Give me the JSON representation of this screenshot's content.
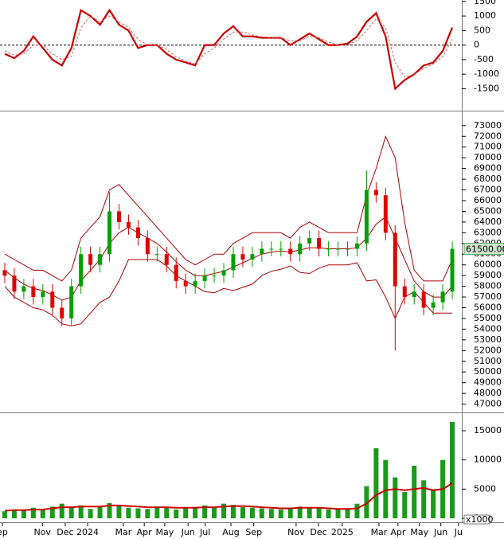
{
  "chart_data": [
    {
      "type": "line",
      "x": [
        1,
        3,
        5,
        7,
        9,
        11,
        13,
        15,
        17,
        19,
        21,
        23,
        25,
        27,
        29,
        31,
        33,
        35,
        37,
        39,
        41,
        43,
        45,
        47,
        49,
        51,
        53,
        55,
        57,
        59,
        61,
        63,
        65,
        67,
        69,
        71,
        73,
        75,
        77,
        79,
        81,
        83,
        85,
        87,
        89,
        91,
        93,
        95
      ],
      "xlim": [
        0,
        97
      ],
      "ylim": [
        -2200,
        1550
      ],
      "yticks": [
        1500,
        1000,
        500,
        0,
        -500,
        -1000,
        -1500
      ],
      "hline": 0,
      "series": [
        {
          "color": "#cc0000",
          "style": "solid",
          "values": [
            -300,
            -450,
            -200,
            300,
            -100,
            -500,
            -700,
            -100,
            1200,
            1000,
            700,
            1200,
            700,
            500,
            -100,
            0,
            0,
            -300,
            -500,
            -600,
            -700,
            0,
            0,
            400,
            650,
            300,
            300,
            250,
            250,
            250,
            0,
            200,
            400,
            200,
            0,
            0,
            50,
            300,
            800,
            1100,
            300,
            -1500,
            -1200,
            -1000,
            -700,
            -600,
            -200,
            600
          ]
        },
        {
          "color": "#cc6666",
          "style": "dashed",
          "values": [
            -200,
            -350,
            -300,
            0,
            0,
            -300,
            -500,
            -400,
            600,
            1000,
            800,
            1000,
            800,
            600,
            200,
            0,
            0,
            -150,
            -400,
            -550,
            -650,
            -300,
            -100,
            200,
            450,
            450,
            350,
            280,
            260,
            250,
            150,
            150,
            300,
            250,
            100,
            0,
            0,
            150,
            500,
            900,
            600,
            -600,
            -1100,
            -1000,
            -800,
            -650,
            -400,
            200
          ]
        }
      ]
    },
    {
      "type": "candlestick",
      "x": [
        1,
        3,
        5,
        7,
        9,
        11,
        13,
        15,
        17,
        19,
        21,
        23,
        25,
        27,
        29,
        31,
        33,
        35,
        37,
        39,
        41,
        43,
        45,
        47,
        49,
        51,
        53,
        55,
        57,
        59,
        61,
        63,
        65,
        67,
        69,
        71,
        73,
        75,
        77,
        79,
        81,
        83,
        85,
        87,
        89,
        91,
        93,
        95
      ],
      "xlim": [
        0,
        97
      ],
      "ylim": [
        46300,
        74250
      ],
      "yticks": [
        73000,
        72000,
        71000,
        70000,
        69000,
        68000,
        67000,
        66000,
        65000,
        64000,
        63000,
        62000,
        61000,
        60000,
        59000,
        58000,
        57000,
        56000,
        55000,
        54000,
        53000,
        52000,
        51000,
        50000,
        49000,
        48000,
        47000
      ],
      "up_color": "#00a000",
      "down_color": "#e00000",
      "open": [
        59500,
        59000,
        57500,
        58000,
        57000,
        57500,
        56000,
        55000,
        58000,
        61000,
        60000,
        61000,
        65000,
        64000,
        63500,
        62500,
        61000,
        61000,
        60000,
        58500,
        58000,
        58500,
        59000,
        59000,
        59500,
        61000,
        60500,
        61000,
        61500,
        61500,
        61500,
        61000,
        62000,
        62500,
        61500,
        61500,
        61500,
        61500,
        62000,
        67000,
        66500,
        63000,
        58000,
        57000,
        57500,
        56000,
        56500,
        57500
      ],
      "high": [
        60200,
        59700,
        58700,
        58700,
        58200,
        58200,
        56700,
        58700,
        61700,
        61700,
        61700,
        66800,
        65700,
        64700,
        64200,
        63200,
        61700,
        61700,
        60700,
        59200,
        59200,
        59700,
        59700,
        60200,
        61700,
        61700,
        61700,
        62200,
        62200,
        62200,
        62200,
        62700,
        63200,
        63200,
        62200,
        62200,
        62200,
        62700,
        68800,
        67700,
        67200,
        63700,
        58700,
        58200,
        58200,
        57200,
        58200,
        62200
      ],
      "low": [
        58300,
        56800,
        56800,
        56300,
        56300,
        55300,
        54300,
        54300,
        57300,
        59300,
        59300,
        60300,
        63300,
        62800,
        61800,
        60300,
        60300,
        59300,
        57800,
        57300,
        57300,
        57800,
        58300,
        58300,
        58800,
        59800,
        59800,
        60300,
        60800,
        60800,
        60300,
        60300,
        61300,
        60800,
        60800,
        60800,
        60800,
        60800,
        61300,
        65800,
        62300,
        52000,
        56300,
        56300,
        55300,
        55300,
        55800,
        56800
      ],
      "close": [
        59000,
        57500,
        58000,
        57000,
        57500,
        56000,
        55000,
        58000,
        61000,
        60000,
        61000,
        65000,
        64000,
        63500,
        62500,
        61000,
        61000,
        60000,
        58500,
        58000,
        58500,
        59000,
        59000,
        59500,
        61000,
        60500,
        61000,
        61500,
        61500,
        61500,
        61000,
        62000,
        62500,
        61500,
        61500,
        61500,
        61500,
        62000,
        67000,
        66500,
        63000,
        58000,
        57000,
        57500,
        56000,
        56500,
        57500,
        61500
      ],
      "close_label": "61500.00",
      "bands": [
        {
          "color": "#aa0000",
          "values": [
            61000,
            60500,
            60000,
            59500,
            59500,
            59000,
            58500,
            59500,
            62500,
            63500,
            64500,
            67000,
            67500,
            66500,
            65500,
            64500,
            63500,
            62500,
            61500,
            60500,
            60000,
            60500,
            61000,
            61000,
            62000,
            62500,
            63000,
            63000,
            63000,
            63000,
            62500,
            63500,
            64000,
            63500,
            63000,
            63000,
            63000,
            63000,
            66500,
            69000,
            72000,
            70000,
            64000,
            59500,
            58500,
            58500,
            58500,
            60500
          ]
        },
        {
          "color": "#aa0000",
          "values": [
            59500,
            58800,
            58200,
            57800,
            57600,
            57200,
            56700,
            57000,
            58500,
            59500,
            60500,
            62000,
            63000,
            63500,
            63000,
            62500,
            62000,
            61200,
            60300,
            59500,
            59000,
            59000,
            59200,
            59400,
            59800,
            60200,
            60600,
            61000,
            61200,
            61300,
            61200,
            61400,
            61600,
            61600,
            61500,
            61500,
            61500,
            61600,
            62500,
            63800,
            64500,
            62500,
            60500,
            58500,
            57500,
            57000,
            57000,
            58000
          ]
        },
        {
          "color": "#aa0000",
          "values": [
            58000,
            57000,
            56500,
            56000,
            55800,
            55300,
            54500,
            54300,
            54500,
            55500,
            56500,
            57000,
            58500,
            60500,
            60500,
            60500,
            60500,
            59900,
            59000,
            58500,
            58000,
            57500,
            57400,
            57800,
            57600,
            57900,
            58200,
            59000,
            59400,
            59600,
            59900,
            59300,
            59200,
            59700,
            60000,
            60000,
            60000,
            60200,
            58500,
            58600,
            57000,
            55000,
            57000,
            57500,
            56500,
            55500,
            55500,
            55500
          ]
        }
      ]
    },
    {
      "type": "bar",
      "x": [
        1,
        3,
        5,
        7,
        9,
        11,
        13,
        15,
        17,
        19,
        21,
        23,
        25,
        27,
        29,
        31,
        33,
        35,
        37,
        39,
        41,
        43,
        45,
        47,
        49,
        51,
        53,
        55,
        57,
        59,
        61,
        63,
        65,
        67,
        69,
        71,
        73,
        75,
        77,
        79,
        81,
        83,
        85,
        87,
        89,
        91,
        93,
        95
      ],
      "xlim": [
        0,
        97
      ],
      "ylim": [
        0,
        18000
      ],
      "yticks": [
        15000,
        10000,
        5000,
        0
      ],
      "unit_label": "x1000",
      "color": "#1a9a1a",
      "values": [
        1200,
        1500,
        1300,
        1800,
        1400,
        2000,
        2500,
        1800,
        2200,
        1600,
        2000,
        2600,
        2200,
        1800,
        1700,
        1600,
        2000,
        1900,
        1500,
        1700,
        1800,
        2200,
        2000,
        2500,
        2300,
        1900,
        1800,
        1700,
        1600,
        1500,
        1800,
        2000,
        1900,
        1700,
        1500,
        1600,
        1500,
        2500,
        5500,
        12000,
        10000,
        7000,
        4500,
        9000,
        6500,
        5000,
        10000,
        16500
      ],
      "ma": {
        "color": "#cc0000",
        "values": [
          1300,
          1400,
          1400,
          1500,
          1500,
          1700,
          1900,
          1900,
          2000,
          2000,
          2000,
          2200,
          2200,
          2100,
          2000,
          1900,
          1900,
          1900,
          1800,
          1800,
          1800,
          1900,
          1900,
          2000,
          2100,
          2100,
          2000,
          1900,
          1800,
          1700,
          1700,
          1800,
          1800,
          1800,
          1700,
          1600,
          1600,
          1700,
          2500,
          4000,
          4800,
          5000,
          4800,
          5000,
          5200,
          4800,
          5000,
          6000
        ]
      },
      "xticks": [
        {
          "value": 0.5,
          "label": "ep"
        },
        {
          "value": 8.9,
          "label": "Nov"
        },
        {
          "value": 13.7,
          "label": "Dec"
        },
        {
          "value": 18.4,
          "label": "2024"
        },
        {
          "value": 25.9,
          "label": "Mar"
        },
        {
          "value": 30.3,
          "label": "Apr"
        },
        {
          "value": 34.6,
          "label": "May"
        },
        {
          "value": 39.5,
          "label": "Jun"
        },
        {
          "value": 43.1,
          "label": "Jul"
        },
        {
          "value": 48.5,
          "label": "Aug"
        },
        {
          "value": 53.3,
          "label": "Sep"
        },
        {
          "value": 62.2,
          "label": "Nov"
        },
        {
          "value": 66.9,
          "label": "Dec"
        },
        {
          "value": 71.9,
          "label": "2025"
        },
        {
          "value": 79.6,
          "label": "Mar"
        },
        {
          "value": 83.6,
          "label": "Apr"
        },
        {
          "value": 88.1,
          "label": "May"
        },
        {
          "value": 92.6,
          "label": "Jun"
        },
        {
          "value": 96.3,
          "label": "Ju"
        }
      ]
    }
  ]
}
